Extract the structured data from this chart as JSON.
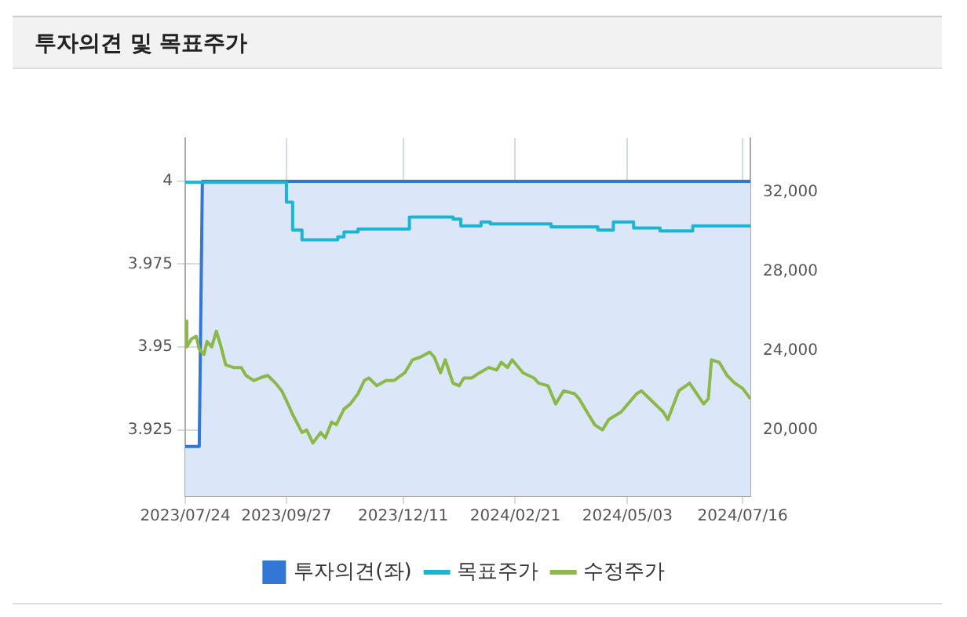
{
  "chart_data": {
    "type": "line",
    "title": "투자의견 및 목표주가",
    "xlim": [
      "2023-07-24",
      "2024-07-21"
    ],
    "xticks": [
      {
        "value": "2023-07-24",
        "label": "2023/07/24"
      },
      {
        "value": "2023-09-27",
        "label": "2023/09/27"
      },
      {
        "value": "2023-12-11",
        "label": "2023/12/11"
      },
      {
        "value": "2024-02-21",
        "label": "2024/02/21"
      },
      {
        "value": "2024-05-03",
        "label": "2024/05/03"
      },
      {
        "value": "2024-07-16",
        "label": "2024/07/16"
      }
    ],
    "ylim": [
      3.905,
      4.013
    ],
    "yticks": [
      3.925,
      3.95,
      3.975,
      4
    ],
    "y2lim": [
      16670,
      34730
    ],
    "y2ticks": [
      {
        "value": 20000,
        "label": "20,000"
      },
      {
        "value": 24000,
        "label": "24,000"
      },
      {
        "value": 28000,
        "label": "28,000"
      },
      {
        "value": 32000,
        "label": "32,000"
      }
    ],
    "grid": true,
    "legend": "bottom",
    "series": [
      {
        "name": "투자의견(좌)",
        "type": "area",
        "color": "#3276d6",
        "x": [
          "2023-07-24",
          "2023-08-02",
          "2023-08-03",
          "2023-08-04",
          "2024-07-21"
        ],
        "values": [
          3.92,
          3.92,
          3.96,
          4,
          4
        ]
      },
      {
        "name": "목표주가",
        "type": "step",
        "axis": "y2",
        "color": "#1bb5d3",
        "x": [
          "2023-07-24",
          "2023-09-27",
          "2023-10-01",
          "2023-10-07",
          "2023-10-30",
          "2023-11-03",
          "2023-11-12",
          "2023-12-15",
          "2024-01-12",
          "2024-01-17",
          "2024-01-30",
          "2024-02-05",
          "2024-03-15",
          "2024-04-14",
          "2024-04-24",
          "2024-05-07",
          "2024-05-24",
          "2024-06-14",
          "2024-07-10",
          "2024-07-21"
        ],
        "values": [
          32500,
          32500,
          31500,
          30100,
          29600,
          29750,
          30000,
          30150,
          30750,
          30650,
          30300,
          30500,
          30400,
          30250,
          30100,
          30500,
          30200,
          30050,
          30300,
          30300
        ]
      },
      {
        "name": "수정주가",
        "axis": "y2",
        "color": "#8cb84a",
        "x": [
          "2023-07-24",
          "2023-07-25",
          "2023-07-28",
          "2023-07-31",
          "2023-08-02",
          "2023-08-05",
          "2023-08-07",
          "2023-08-10",
          "2023-08-13",
          "2023-08-16",
          "2023-08-19",
          "2023-08-24",
          "2023-08-29",
          "2023-09-01",
          "2023-09-06",
          "2023-09-10",
          "2023-09-15",
          "2023-09-20",
          "2023-09-24",
          "2023-09-28",
          "2023-10-01",
          "2023-10-07",
          "2023-10-10",
          "2023-10-14",
          "2023-10-19",
          "2023-10-22",
          "2023-10-26",
          "2023-10-29",
          "2023-11-03",
          "2023-11-07",
          "2023-11-12",
          "2023-11-16",
          "2023-11-19",
          "2023-11-24",
          "2023-11-30",
          "2023-12-05",
          "2023-12-12",
          "2023-12-17",
          "2023-12-22",
          "2023-12-28",
          "2023-12-31",
          "2024-01-04",
          "2024-01-07",
          "2024-01-12",
          "2024-01-16",
          "2024-01-19",
          "2024-01-24",
          "2024-01-29",
          "2024-02-04",
          "2024-02-09",
          "2024-02-12",
          "2024-02-16",
          "2024-02-19",
          "2024-02-26",
          "2024-03-04",
          "2024-03-07",
          "2024-03-13",
          "2024-03-18",
          "2024-03-23",
          "2024-03-30",
          "2024-04-02",
          "2024-04-12",
          "2024-04-17",
          "2024-04-21",
          "2024-04-29",
          "2024-05-09",
          "2024-05-12",
          "2024-05-19",
          "2024-05-26",
          "2024-05-29",
          "2024-06-05",
          "2024-06-12",
          "2024-06-21",
          "2024-06-24",
          "2024-06-26",
          "2024-07-01",
          "2024-07-06",
          "2024-07-11",
          "2024-07-16",
          "2024-07-21"
        ],
        "values": [
          25500,
          24200,
          24600,
          24730,
          24080,
          23810,
          24470,
          24200,
          24990,
          24200,
          23290,
          23160,
          23160,
          22760,
          22500,
          22630,
          22760,
          22370,
          21980,
          21320,
          20790,
          19880,
          20010,
          19350,
          19880,
          19610,
          20400,
          20270,
          21060,
          21320,
          21840,
          22500,
          22630,
          22240,
          22500,
          22500,
          22890,
          23550,
          23680,
          23940,
          23680,
          22890,
          23550,
          22370,
          22240,
          22630,
          22630,
          22890,
          23160,
          23030,
          23420,
          23160,
          23550,
          22890,
          22630,
          22370,
          22240,
          21320,
          21980,
          21840,
          21580,
          20270,
          20010,
          20530,
          20920,
          21840,
          21980,
          21450,
          20920,
          20530,
          21980,
          22370,
          21320,
          21580,
          23550,
          23420,
          22760,
          22370,
          22110,
          21580
        ]
      }
    ]
  }
}
